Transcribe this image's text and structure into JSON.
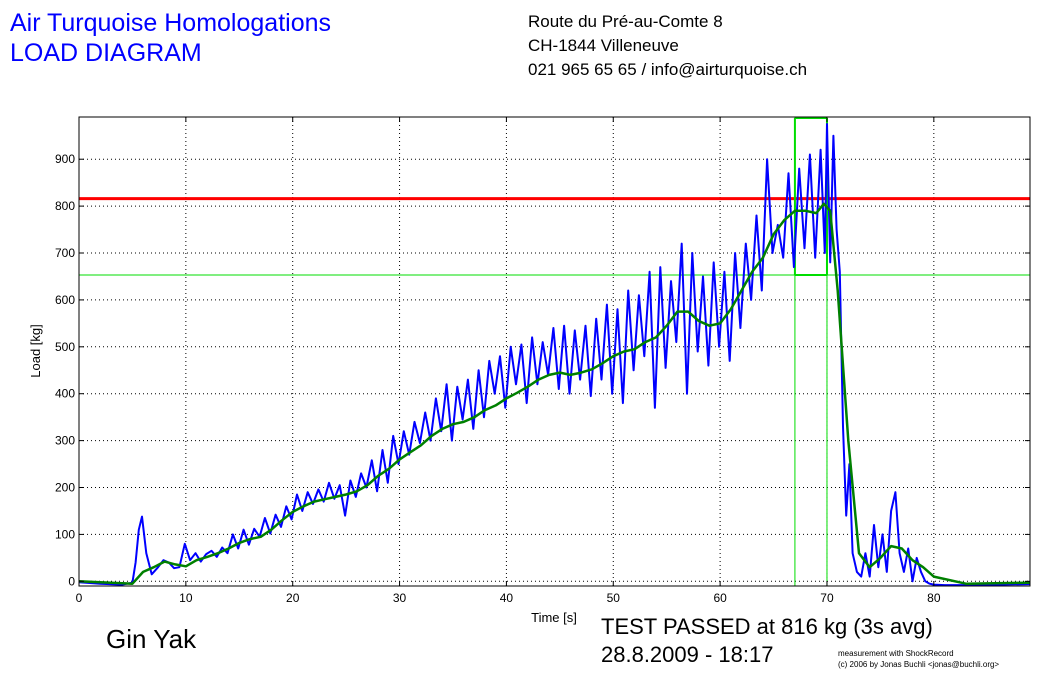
{
  "header": {
    "title_line1": "Air Turquoise Homologations",
    "title_line2": "LOAD DIAGRAM",
    "address_line1": "Route du Pré-au-Comte 8",
    "address_line2": "CH-1844 Villeneuve",
    "address_line3": "021 965 65 65 / info@airturquoise.ch"
  },
  "footer": {
    "product": "Gin Yak",
    "result": "TEST PASSED at 816 kg (3s avg)",
    "datetime": "28.8.2009 - 18:17",
    "credit_line1": "measurement with ShockRecord",
    "credit_line2": "(c) 2006 by Jonas Buchli <jonas@buchli.org>"
  },
  "colors": {
    "raw_series": "#0000ff",
    "avg_series": "#008000",
    "limit_line": "#ff0000",
    "threshold_lines": "#00dd00",
    "title": "#0000ff"
  },
  "chart_data": {
    "type": "line",
    "xlabel": "Time [s]",
    "ylabel": "Load [kg]",
    "xlim": [
      0,
      89
    ],
    "ylim": [
      -10,
      990
    ],
    "xticks": [
      0,
      10,
      20,
      30,
      40,
      50,
      60,
      70,
      80
    ],
    "yticks": [
      0,
      100,
      200,
      300,
      400,
      500,
      600,
      700,
      800,
      900
    ],
    "grid": true,
    "reference_lines": [
      {
        "axis": "y",
        "value": 816,
        "color": "red"
      },
      {
        "axis": "y",
        "value": 653,
        "color": "green"
      }
    ],
    "window": {
      "x_start": 67,
      "x_end": 70,
      "y_low": 653,
      "y_high": 990
    },
    "series": [
      {
        "style": "raw",
        "x": [
          0,
          2,
          4,
          5,
          5.3,
          5.6,
          5.9,
          6.3,
          6.8,
          7.4,
          7.9,
          8.4,
          8.9,
          9.4,
          9.9,
          10.4,
          10.9,
          11.4,
          11.9,
          12.4,
          12.9,
          13.4,
          13.9,
          14.4,
          14.9,
          15.4,
          15.9,
          16.4,
          16.9,
          17.4,
          17.9,
          18.4,
          18.9,
          19.4,
          19.9,
          20.4,
          20.9,
          21.4,
          21.9,
          22.4,
          22.9,
          23.4,
          23.9,
          24.4,
          24.9,
          25.4,
          25.9,
          26.4,
          26.9,
          27.4,
          27.9,
          28.4,
          28.9,
          29.4,
          29.9,
          30.4,
          30.9,
          31.4,
          31.9,
          32.4,
          32.9,
          33.4,
          33.9,
          34.4,
          34.9,
          35.4,
          35.9,
          36.4,
          36.9,
          37.4,
          37.9,
          38.4,
          38.9,
          39.4,
          39.9,
          40.4,
          40.9,
          41.4,
          41.9,
          42.4,
          42.9,
          43.4,
          43.9,
          44.4,
          44.9,
          45.4,
          45.9,
          46.4,
          46.9,
          47.4,
          47.9,
          48.4,
          48.9,
          49.4,
          49.9,
          50.4,
          50.9,
          51.4,
          51.9,
          52.4,
          52.9,
          53.4,
          53.9,
          54.4,
          54.9,
          55.4,
          55.9,
          56.4,
          56.9,
          57.4,
          57.9,
          58.4,
          58.9,
          59.4,
          59.9,
          60.4,
          60.9,
          61.4,
          61.9,
          62.4,
          62.9,
          63.4,
          63.9,
          64.4,
          64.9,
          65.4,
          65.9,
          66.4,
          66.9,
          67.4,
          67.9,
          68.4,
          68.9,
          69.4,
          69.8,
          70.0,
          70.3,
          70.6,
          70.9,
          71.2,
          71.5,
          71.8,
          72.1,
          72.4,
          72.8,
          73.2,
          73.6,
          74.0,
          74.4,
          74.8,
          75.2,
          75.6,
          76.0,
          76.4,
          76.8,
          77.2,
          77.6,
          78.0,
          78.4,
          78.8,
          79.2,
          79.6,
          80.0,
          81.0,
          83.0,
          86.0,
          89.0
        ],
        "y": [
          -2,
          -5,
          -7,
          -3,
          40,
          110,
          138,
          60,
          15,
          30,
          45,
          40,
          28,
          30,
          80,
          45,
          60,
          42,
          58,
          65,
          52,
          72,
          60,
          100,
          70,
          110,
          78,
          112,
          95,
          135,
          102,
          142,
          116,
          160,
          132,
          185,
          150,
          190,
          165,
          196,
          170,
          210,
          176,
          205,
          140,
          215,
          180,
          230,
          200,
          258,
          192,
          280,
          210,
          310,
          250,
          320,
          270,
          340,
          295,
          360,
          300,
          390,
          320,
          420,
          300,
          415,
          345,
          430,
          325,
          450,
          350,
          470,
          400,
          480,
          370,
          500,
          420,
          505,
          380,
          520,
          420,
          510,
          440,
          540,
          410,
          545,
          400,
          535,
          430,
          545,
          395,
          560,
          430,
          590,
          400,
          580,
          380,
          620,
          450,
          610,
          480,
          660,
          370,
          670,
          455,
          640,
          510,
          720,
          400,
          700,
          490,
          650,
          460,
          680,
          500,
          660,
          470,
          700,
          540,
          720,
          600,
          780,
          620,
          900,
          700,
          760,
          690,
          870,
          670,
          880,
          710,
          910,
          690,
          920,
          700,
          975,
          680,
          950,
          750,
          660,
          330,
          140,
          250,
          60,
          20,
          10,
          60,
          10,
          120,
          30,
          100,
          20,
          150,
          190,
          60,
          20,
          70,
          0,
          50,
          20,
          0,
          -5,
          -7,
          -8,
          -8,
          -7,
          -6
        ]
      },
      {
        "style": "avg",
        "x": [
          0,
          3,
          5,
          6,
          7,
          8,
          9,
          10,
          11,
          12,
          13,
          14,
          15,
          16,
          17,
          18,
          19,
          20,
          21,
          22,
          23,
          24,
          25,
          26,
          27,
          28,
          29,
          30,
          31,
          32,
          33,
          34,
          35,
          36,
          37,
          38,
          39,
          40,
          41,
          42,
          43,
          44,
          45,
          46,
          47,
          48,
          49,
          50,
          51,
          52,
          53,
          54,
          55,
          56,
          57,
          58,
          59,
          60,
          61,
          62,
          63,
          64,
          65,
          66,
          67,
          68,
          69,
          69.7,
          70.3,
          71,
          72,
          73,
          74,
          75,
          76,
          77,
          78,
          79,
          80,
          83,
          89
        ],
        "y": [
          0,
          -3,
          -5,
          20,
          30,
          42,
          36,
          32,
          45,
          52,
          60,
          70,
          82,
          90,
          95,
          110,
          130,
          148,
          160,
          170,
          175,
          180,
          185,
          192,
          205,
          225,
          240,
          260,
          275,
          290,
          310,
          325,
          335,
          340,
          350,
          365,
          375,
          390,
          402,
          415,
          430,
          440,
          445,
          440,
          445,
          452,
          465,
          480,
          490,
          495,
          510,
          520,
          545,
          575,
          575,
          555,
          545,
          550,
          580,
          620,
          660,
          690,
          740,
          770,
          790,
          790,
          785,
          805,
          790,
          620,
          300,
          60,
          30,
          50,
          75,
          70,
          45,
          30,
          10,
          -5,
          -3
        ]
      }
    ]
  }
}
